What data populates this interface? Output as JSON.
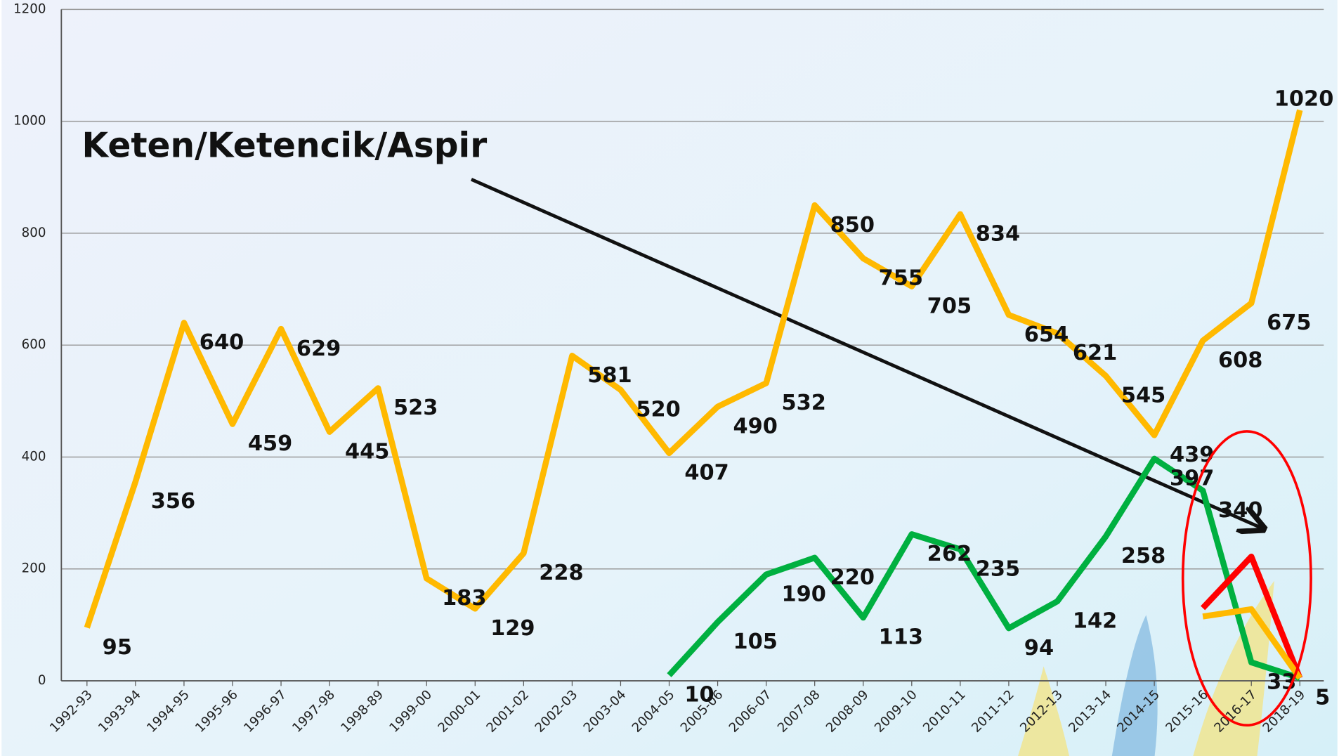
{
  "chart_data": {
    "type": "line",
    "title": "Keten/Ketencik/Aspir",
    "categories": [
      "1992-93",
      "1993-94",
      "1994-95",
      "1995-96",
      "1996-97",
      "1997-98",
      "1998-89",
      "1999-00",
      "2000-01",
      "2001-02",
      "2002-03",
      "2003-04",
      "2004-05",
      "2005-06",
      "2006-07",
      "2007-08",
      "2008-09",
      "2009-10",
      "2010-11",
      "2011-12",
      "2012-13",
      "2013-14",
      "2014-15",
      "2015-16",
      "2016-17",
      "2018-19"
    ],
    "series": [
      {
        "color": "#ffb900",
        "values": [
          95,
          356,
          640,
          459,
          629,
          445,
          523,
          183,
          129,
          228,
          581,
          520,
          407,
          490,
          532,
          850,
          755,
          705,
          834,
          654,
          621,
          545,
          439,
          608,
          675,
          1020
        ],
        "labels": true,
        "highlight": {
          "index": 25,
          "color": "#ff0000"
        }
      },
      {
        "color": "#00b040",
        "values": [
          null,
          null,
          null,
          null,
          null,
          null,
          null,
          null,
          null,
          null,
          null,
          null,
          10,
          105,
          190,
          220,
          113,
          262,
          235,
          94,
          142,
          258,
          397,
          340,
          33,
          5
        ],
        "labels": true
      },
      {
        "color": "#ff0000",
        "values": [
          null,
          null,
          null,
          null,
          null,
          null,
          null,
          null,
          null,
          null,
          null,
          null,
          null,
          null,
          null,
          null,
          null,
          null,
          null,
          null,
          null,
          null,
          null,
          130,
          222,
          5
        ],
        "labels": false
      },
      {
        "color": "#ffb900",
        "values": [
          null,
          null,
          null,
          null,
          null,
          null,
          null,
          null,
          null,
          null,
          null,
          null,
          null,
          null,
          null,
          null,
          null,
          null,
          null,
          null,
          null,
          null,
          null,
          115,
          128,
          5
        ],
        "labels": false
      }
    ],
    "ylim": [
      0,
      1200
    ],
    "yticks": [
      0,
      200,
      400,
      600,
      800,
      1000,
      1200
    ],
    "grid": true
  }
}
